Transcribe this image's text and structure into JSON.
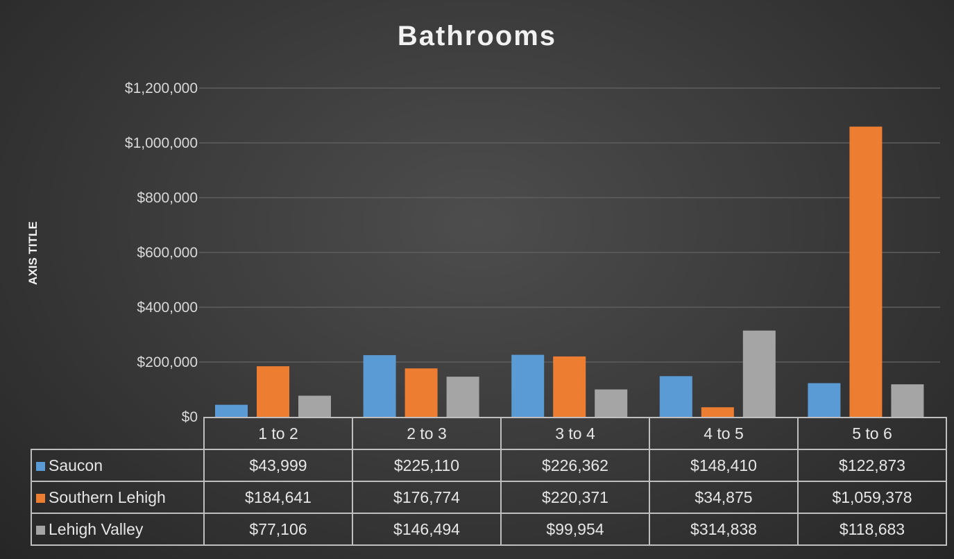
{
  "chart_data": {
    "type": "bar",
    "title": "Bathrooms",
    "xlabel": "",
    "ylabel": "AXIS TITLE",
    "ylim": [
      0,
      1200000
    ],
    "yticks": [
      "$0",
      "$200,000",
      "$400,000",
      "$600,000",
      "$800,000",
      "$1,000,000",
      "$1,200,000"
    ],
    "grid": true,
    "legend": "data-table",
    "categories": [
      "1 to 2",
      "2 to 3",
      "3 to 4",
      "4 to 5",
      "5 to 6"
    ],
    "series": [
      {
        "name": "Saucon",
        "color": "#5b9bd5",
        "values": [
          43999,
          225110,
          226362,
          148410,
          122873
        ],
        "labels": [
          "$43,999",
          "$225,110",
          "$226,362",
          "$148,410",
          "$122,873"
        ]
      },
      {
        "name": "Southern Lehigh",
        "color": "#ed7d31",
        "values": [
          184641,
          176774,
          220371,
          34875,
          1059378
        ],
        "labels": [
          "$184,641",
          "$176,774",
          "$220,371",
          "$34,875",
          "$1,059,378"
        ]
      },
      {
        "name": "Lehigh Valley",
        "color": "#a5a5a5",
        "values": [
          77106,
          146494,
          99954,
          314838,
          118683
        ],
        "labels": [
          "$77,106",
          "$146,494",
          "$99,954",
          "$314,838",
          "$118,683"
        ]
      }
    ]
  }
}
